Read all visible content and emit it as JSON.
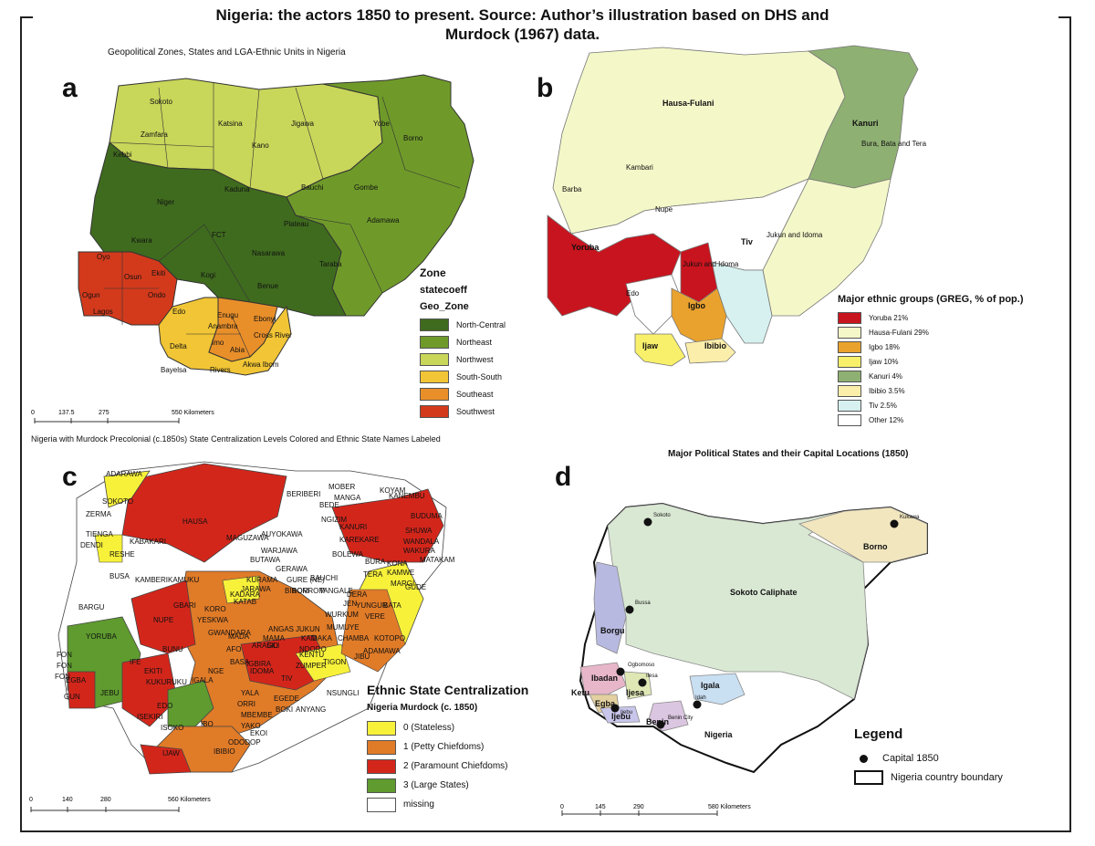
{
  "title": {
    "line1": "Nigeria: the actors 1850 to present. Source: Author’s illustration based on DHS and",
    "line2": "Murdock (1967) data."
  },
  "panel_a": {
    "letter": "a",
    "title": "Geopolitical Zones, States and LGA-Ethnic Units in Nigeria",
    "legend_title": "Zone",
    "legend_sub1": "statecoeff",
    "legend_sub2": "Geo_Zone",
    "legend_items": [
      {
        "label": "North-Central",
        "color": "#3f6b1e"
      },
      {
        "label": "Northeast",
        "color": "#6f9a2a"
      },
      {
        "label": "Northwest",
        "color": "#c8d65a"
      },
      {
        "label": "South-South",
        "color": "#f1c535"
      },
      {
        "label": "Southeast",
        "color": "#e98f2a"
      },
      {
        "label": "Southwest",
        "color": "#d33a1c"
      }
    ],
    "state_labels": [
      "Sokoto",
      "Katsina",
      "Jigawa",
      "Yobe",
      "Zamfara",
      "Kano",
      "Borno",
      "Kebbi",
      "Niger",
      "Kaduna",
      "Bauchi",
      "Gombe",
      "Plateau",
      "Adamawa",
      "FCT",
      "Kwara",
      "Nasarawa",
      "Oyo",
      "Osun",
      "Ekiti",
      "Kogi",
      "Taraba",
      "Ogun",
      "Ondo",
      "Benue",
      "Lagos",
      "Edo",
      "Enugu",
      "Ebonyi",
      "Anambra",
      "Cross River",
      "Delta",
      "Imo",
      "Abia",
      "Bayelsa",
      "Rivers",
      "Akwa Ibom"
    ],
    "scale": {
      "ticks": [
        "0",
        "137.5",
        "275",
        "550 Kilometers"
      ]
    }
  },
  "panel_b": {
    "letter": "b",
    "legend_title": "Major ethnic groups (GREG, % of pop.)",
    "legend_items": [
      {
        "label": "Yoruba 21%",
        "color": "#c8141e"
      },
      {
        "label": "Hausa-Fulani 29%",
        "color": "#f4f7c8"
      },
      {
        "label": "Igbo 18%",
        "color": "#e9a22d"
      },
      {
        "label": "Ijaw 10%",
        "color": "#f8f06a"
      },
      {
        "label": "Kanuri 4%",
        "color": "#8fb073"
      },
      {
        "label": "Ibibio 3.5%",
        "color": "#fbeeaa"
      },
      {
        "label": "Tiv 2.5%",
        "color": "#d6f1ef"
      },
      {
        "label": "Other 12%",
        "color": "#ffffff"
      }
    ],
    "map_labels": [
      "Hausa-Fulani",
      "Kanuri",
      "Bura, Bata and Tera",
      "Kambari",
      "Barba",
      "Nupe",
      "Yoruba",
      "Tiv",
      "Jukun and Idoma",
      "Jukun and Idoma",
      "Edo",
      "Igbo",
      "Ijaw",
      "Ibibio"
    ]
  },
  "panel_c": {
    "letter": "c",
    "title": "Nigeria with Murdock Precolonial (c.1850s) State Centralization Levels Colored and Ethnic State Names Labeled",
    "legend_title": "Ethnic State Centralization",
    "legend_sub": "Nigeria Murdock (c. 1850)",
    "legend_items": [
      {
        "label": "0 (Stateless)",
        "color": "#f7f13a"
      },
      {
        "label": "1 (Petty Chiefdoms)",
        "color": "#e07b28"
      },
      {
        "label": "2 (Paramount Chiefdoms)",
        "color": "#d3261b"
      },
      {
        "label": "3 (Large States)",
        "color": "#5f9b2f"
      },
      {
        "label": "missing",
        "color": "#ffffff"
      }
    ],
    "map_labels": [
      "ADARAWA",
      "SOKOTO",
      "ZERMA",
      "TIENGA",
      "DENDI",
      "RESHE",
      "BUSA",
      "BARGU",
      "YORUBA",
      "FON",
      "FON",
      "FON",
      "EGBA",
      "GUN",
      "JEBU",
      "HAUSA",
      "KABAKARI",
      "KAMBERI",
      "KAMUKU",
      "GBARI",
      "NUPE",
      "BUNU",
      "IFE",
      "EKITI",
      "KUKURUKU",
      "IGALA",
      "EDO",
      "ISEKIRI",
      "ISOKO",
      "IJAW",
      "IBO",
      "IBIBIO",
      "MAGUZAWA",
      "AUYOKAWA",
      "WARJAWA",
      "BUTAWA",
      "GERAWA",
      "KURAMA",
      "GURE (NE)",
      "KADARA",
      "KATAB",
      "KORO",
      "YESKWA",
      "GWANDARA",
      "MADA",
      "MAMA",
      "ANGAS",
      "SILI",
      "AFO",
      "ARAGO",
      "BASA",
      "IGBIRA",
      "NGE",
      "IDOMA",
      "TIV",
      "JUKUN",
      "KAM",
      "DAKA",
      "CHAMBA",
      "KOTOPO",
      "MUMUYE",
      "VERE",
      "BATA",
      "GUDE",
      "KAMWE",
      "MATAKAM",
      "KANURI",
      "KAREKARE",
      "BOLEWA",
      "TERA",
      "BURA",
      "KONA",
      "MARGI",
      "SHUWA",
      "WANDALA",
      "WAKURA",
      "BUDUMA",
      "KANEMBU",
      "KOYAM",
      "MOBER",
      "MANGA",
      "BERIBERI",
      "BEDE",
      "NGIZIM",
      "BAUCHI",
      "TANGALE",
      "DERA",
      "JEN",
      "YUNGUR",
      "WURKUM",
      "BIROM",
      "BORROM",
      "JARAWA",
      "KENTU",
      "ZUMPER",
      "TIGON",
      "NSUNGLI",
      "NDORO",
      "JIBU",
      "ADAMAWA",
      "YALA",
      "ORRI",
      "EGEDE",
      "BOKI",
      "ANYANG",
      "MBEMBE",
      "YAKO",
      "EKOI",
      "ODODOP"
    ],
    "scale": {
      "ticks": [
        "0",
        "140",
        "280",
        "560 Kilometers"
      ]
    }
  },
  "panel_d": {
    "letter": "d",
    "title": "Major Political States and their Capital Locations (1850)",
    "legend_title": "Legend",
    "legend_items": [
      {
        "label": "Capital 1850",
        "type": "dot"
      },
      {
        "label": "Nigeria country boundary",
        "type": "box"
      }
    ],
    "state_labels": [
      "Sokoto Caliphate",
      "Borno",
      "Borgu",
      "Ibadan",
      "Ijesa",
      "Igala",
      "Ketu",
      "Egba",
      "Ijebu",
      "Benin",
      "Nigeria"
    ],
    "capital_labels": [
      "Sokoto",
      "Kukawa",
      "Bussa",
      "Ogbomoso",
      "Ilesa",
      "Idah",
      "Benin City",
      "Ijebu"
    ],
    "scale": {
      "ticks": [
        "0",
        "145",
        "290",
        "580 Kilometers"
      ]
    }
  }
}
